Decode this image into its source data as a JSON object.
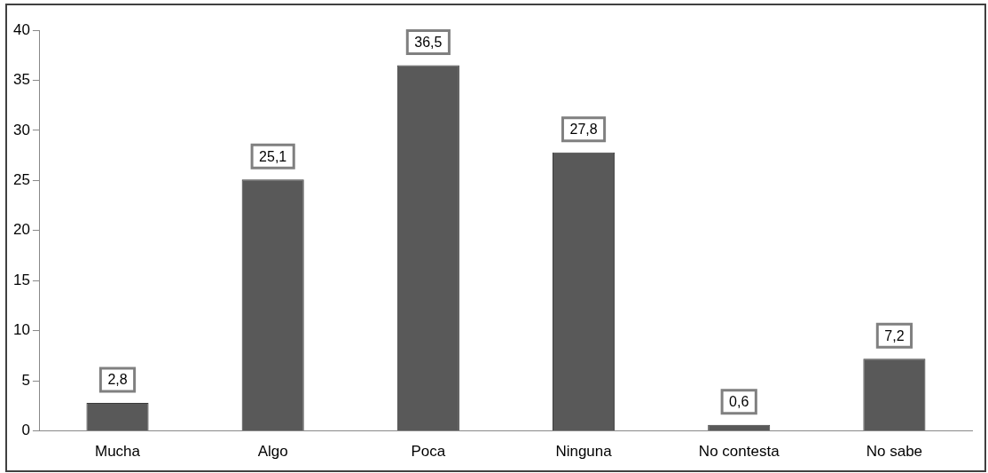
{
  "chart_data": {
    "type": "bar",
    "categories": [
      "Mucha",
      "Algo",
      "Poca",
      "Ninguna",
      "No contesta",
      "No sabe"
    ],
    "values": [
      2.8,
      25.1,
      36.5,
      27.8,
      0.6,
      7.2
    ],
    "value_labels": [
      "2,8",
      "25,1",
      "36,5",
      "27,8",
      "0,6",
      "7,2"
    ],
    "color": "#595959",
    "ylim": [
      0,
      40
    ],
    "yticks": [
      0,
      5,
      10,
      15,
      20,
      25,
      30,
      35,
      40
    ],
    "grid": false,
    "legend": false
  }
}
